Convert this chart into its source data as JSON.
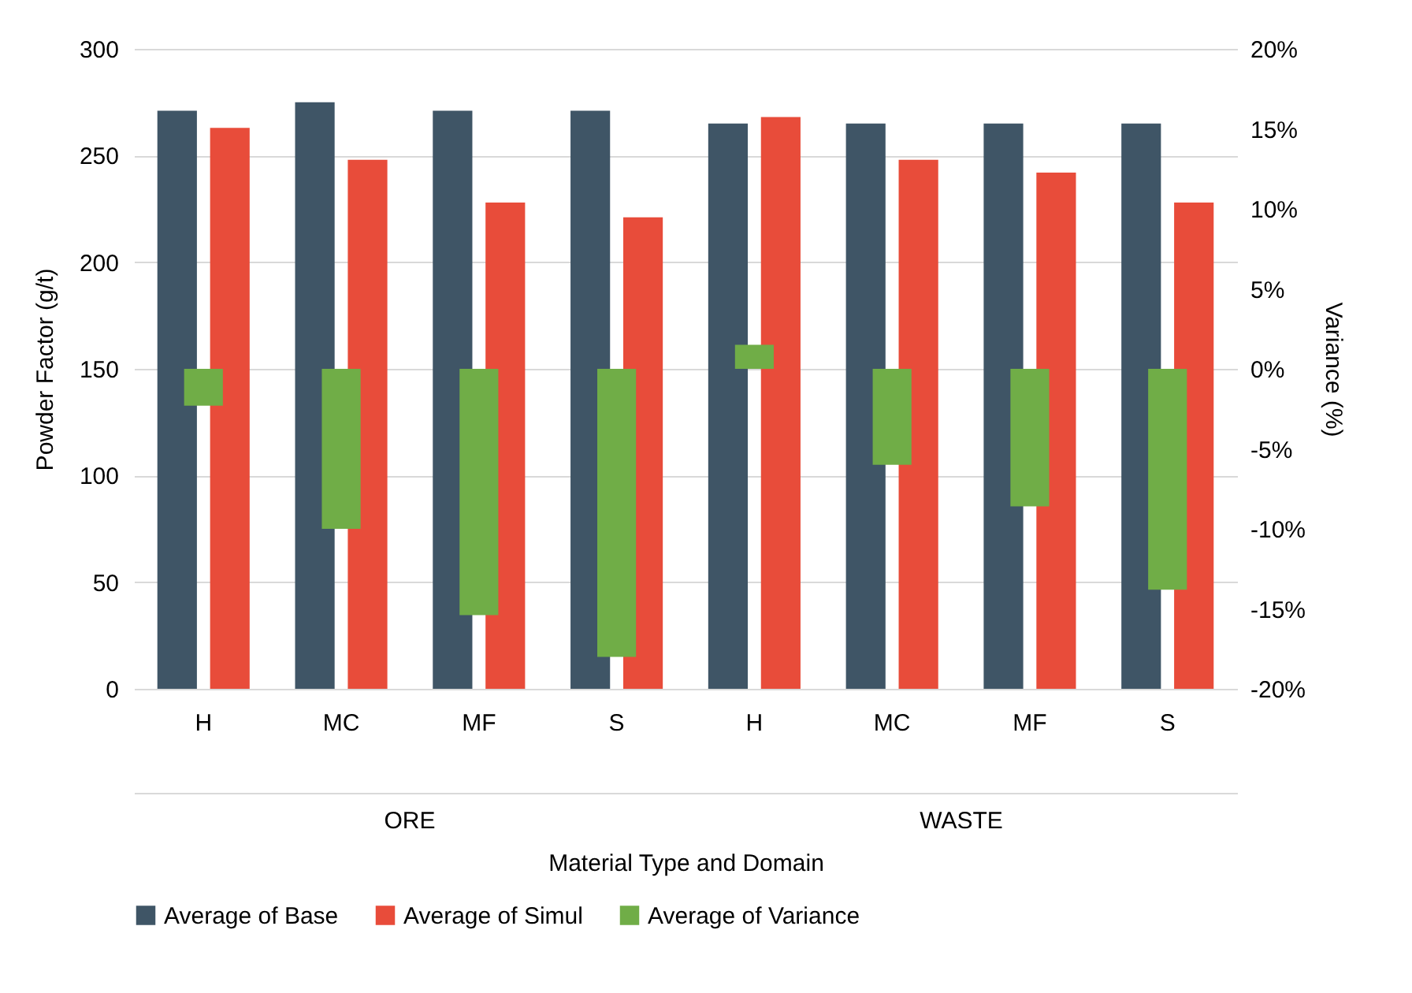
{
  "chart_data": {
    "type": "bar",
    "xlabel": "Material Type and Domain",
    "ylabel": "Powder Factor (g/t)",
    "y2label": "Variance (%)",
    "categories": [
      "H",
      "MC",
      "MF",
      "S",
      "H",
      "MC",
      "MF",
      "S"
    ],
    "annotations": [
      "ORE",
      "WASTE"
    ],
    "series": [
      {
        "name": "Average of Base",
        "color": "#3f5566",
        "values": [
          271,
          275,
          271,
          271,
          265,
          265,
          265,
          265
        ]
      },
      {
        "name": "Average of Simul",
        "color": "#e84c3a",
        "values": [
          263,
          248,
          228,
          221,
          268,
          248,
          242,
          228
        ]
      },
      {
        "name": "Average of Variance",
        "axis": "y2",
        "color": "#70ad47",
        "values": [
          -2.3,
          -10,
          -15.4,
          -18,
          1.5,
          -6,
          -8.6,
          -13.8
        ]
      }
    ],
    "ylim": [
      0,
      300
    ],
    "yticks": [
      0,
      50,
      100,
      150,
      200,
      250,
      300
    ],
    "y2lim": [
      -20,
      20
    ],
    "y2ticks": [
      {
        "value": -20,
        "label": "-20%"
      },
      {
        "value": -15,
        "label": "-15%"
      },
      {
        "value": -10,
        "label": "-10%"
      },
      {
        "value": -5,
        "label": "-5%"
      },
      {
        "value": 0,
        "label": "0%"
      },
      {
        "value": 5,
        "label": "5%"
      },
      {
        "value": 10,
        "label": "10%"
      },
      {
        "value": 15,
        "label": "15%"
      },
      {
        "value": 20,
        "label": "20%"
      }
    ],
    "grid": "y",
    "legend": "bottom"
  }
}
